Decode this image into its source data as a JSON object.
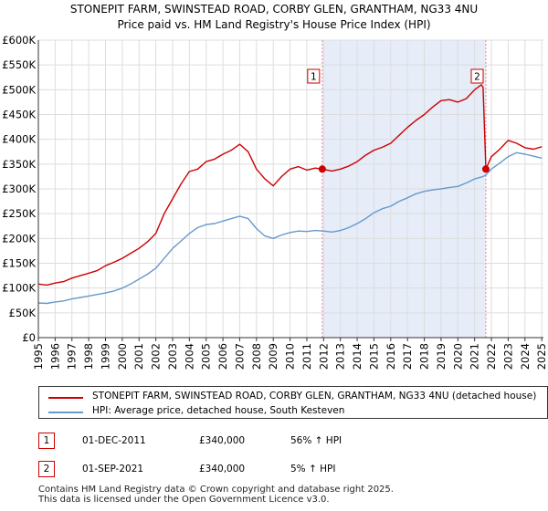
{
  "chart_data": {
    "type": "line",
    "title": "STONEPIT FARM, SWINSTEAD ROAD, CORBY GLEN, GRANTHAM, NG33 4NU",
    "subtitle": "Price paid vs. HM Land Registry's House Price Index (HPI)",
    "xlim": [
      1995,
      2025.1
    ],
    "ylim": [
      0,
      600000
    ],
    "x_ticks": [
      "1995",
      "1996",
      "1997",
      "1998",
      "1999",
      "2000",
      "2001",
      "2002",
      "2003",
      "2004",
      "2005",
      "2006",
      "2007",
      "2008",
      "2009",
      "2010",
      "2011",
      "2012",
      "2013",
      "2014",
      "2015",
      "2016",
      "2017",
      "2018",
      "2019",
      "2020",
      "2021",
      "2022",
      "2023",
      "2024",
      "2025"
    ],
    "y_ticks": [
      {
        "value": 0,
        "label": "£0"
      },
      {
        "value": 50000,
        "label": "£50K"
      },
      {
        "value": 100000,
        "label": "£100K"
      },
      {
        "value": 150000,
        "label": "£150K"
      },
      {
        "value": 200000,
        "label": "£200K"
      },
      {
        "value": 250000,
        "label": "£250K"
      },
      {
        "value": 300000,
        "label": "£300K"
      },
      {
        "value": 350000,
        "label": "£350K"
      },
      {
        "value": 400000,
        "label": "£400K"
      },
      {
        "value": 450000,
        "label": "£450K"
      },
      {
        "value": 500000,
        "label": "£500K"
      },
      {
        "value": 550000,
        "label": "£550K"
      },
      {
        "value": 600000,
        "label": "£600K"
      }
    ],
    "shaded_region": [
      2011.92,
      2021.67
    ],
    "series": [
      {
        "name": "STONEPIT FARM, SWINSTEAD ROAD, CORBY GLEN, GRANTHAM, NG33 4NU (detached house)",
        "color": "#cc0000",
        "x": [
          1995.0,
          1995.5,
          1996.0,
          1996.5,
          1997.0,
          1997.5,
          1998.0,
          1998.5,
          1999.0,
          1999.5,
          2000.0,
          2000.5,
          2001.0,
          2001.5,
          2002.0,
          2002.5,
          2003.0,
          2003.5,
          2004.0,
          2004.5,
          2005.0,
          2005.5,
          2006.0,
          2006.5,
          2007.0,
          2007.5,
          2008.0,
          2008.5,
          2009.0,
          2009.5,
          2010.0,
          2010.5,
          2011.0,
          2011.5,
          2011.92,
          2012.5,
          2013.0,
          2013.5,
          2014.0,
          2014.5,
          2015.0,
          2015.5,
          2016.0,
          2016.5,
          2017.0,
          2017.5,
          2018.0,
          2018.5,
          2019.0,
          2019.5,
          2020.0,
          2020.5,
          2021.0,
          2021.4,
          2021.5,
          2021.67,
          2022.0,
          2022.5,
          2023.0,
          2023.5,
          2024.0,
          2024.5,
          2025.0
        ],
        "y": [
          108000,
          106000,
          110000,
          113000,
          120000,
          125000,
          130000,
          135000,
          145000,
          152000,
          160000,
          170000,
          180000,
          193000,
          210000,
          250000,
          280000,
          310000,
          335000,
          340000,
          355000,
          360000,
          370000,
          378000,
          390000,
          375000,
          340000,
          320000,
          306000,
          325000,
          340000,
          345000,
          338000,
          342000,
          340000,
          336000,
          340000,
          346000,
          355000,
          368000,
          378000,
          384000,
          392000,
          408000,
          424000,
          438000,
          450000,
          465000,
          478000,
          480000,
          475000,
          482000,
          500000,
          510000,
          505000,
          340000,
          365000,
          380000,
          398000,
          392000,
          383000,
          380000,
          385000
        ]
      },
      {
        "name": "HPI: Average price, detached house, South Kesteven",
        "color": "#6699cc",
        "x": [
          1995.0,
          1995.5,
          1996.0,
          1996.5,
          1997.0,
          1997.5,
          1998.0,
          1998.5,
          1999.0,
          1999.5,
          2000.0,
          2000.5,
          2001.0,
          2001.5,
          2002.0,
          2002.5,
          2003.0,
          2003.5,
          2004.0,
          2004.5,
          2005.0,
          2005.5,
          2006.0,
          2006.5,
          2007.0,
          2007.5,
          2008.0,
          2008.5,
          2009.0,
          2009.5,
          2010.0,
          2010.5,
          2011.0,
          2011.5,
          2012.0,
          2012.5,
          2013.0,
          2013.5,
          2014.0,
          2014.5,
          2015.0,
          2015.5,
          2016.0,
          2016.5,
          2017.0,
          2017.5,
          2018.0,
          2018.5,
          2019.0,
          2019.5,
          2020.0,
          2020.5,
          2021.0,
          2021.5,
          2021.67,
          2022.0,
          2022.5,
          2023.0,
          2023.5,
          2024.0,
          2024.5,
          2025.0
        ],
        "y": [
          70000,
          69000,
          72000,
          74000,
          78000,
          81000,
          84000,
          87000,
          90000,
          94000,
          100000,
          108000,
          118000,
          128000,
          140000,
          160000,
          180000,
          195000,
          210000,
          222000,
          228000,
          230000,
          235000,
          240000,
          245000,
          240000,
          220000,
          205000,
          200000,
          207000,
          212000,
          215000,
          214000,
          216000,
          215000,
          213000,
          216000,
          222000,
          230000,
          240000,
          252000,
          260000,
          265000,
          275000,
          282000,
          290000,
          295000,
          298000,
          300000,
          303000,
          305000,
          312000,
          320000,
          325000,
          328000,
          340000,
          352000,
          365000,
          373000,
          370000,
          366000,
          362000
        ]
      }
    ],
    "annotations": [
      {
        "label": "1",
        "x": 2011.92,
        "y": 340000
      },
      {
        "label": "2",
        "x": 2021.67,
        "y": 340000
      }
    ]
  },
  "legend": [
    {
      "label": "STONEPIT FARM, SWINSTEAD ROAD, CORBY GLEN, GRANTHAM, NG33 4NU (detached house)",
      "color": "#cc0000"
    },
    {
      "label": "HPI: Average price, detached house, South Kesteven",
      "color": "#6699cc"
    }
  ],
  "transactions": [
    {
      "num": "1",
      "date": "01-DEC-2011",
      "price": "£340,000",
      "hpi": "56% ↑ HPI"
    },
    {
      "num": "2",
      "date": "01-SEP-2021",
      "price": "£340,000",
      "hpi": "5% ↑ HPI"
    }
  ],
  "footer": {
    "line1": "Contains HM Land Registry data © Crown copyright and database right 2025.",
    "line2": "This data is licensed under the Open Government Licence v3.0."
  }
}
